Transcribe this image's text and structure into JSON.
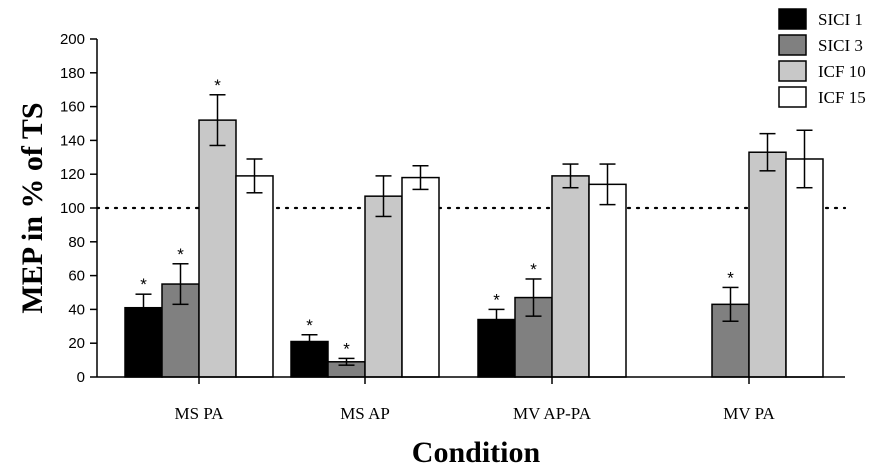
{
  "chart_data": {
    "type": "bar",
    "xlabel": "Condition",
    "ylabel": "MEP in % of TS",
    "ylim": [
      0,
      200
    ],
    "yticks": [
      0,
      20,
      40,
      60,
      80,
      100,
      120,
      140,
      160,
      180,
      200
    ],
    "reference_line": 100,
    "categories": [
      "MS PA",
      "MS AP",
      "MV AP-PA",
      "MV PA"
    ],
    "legend_position": "top-right",
    "series": [
      {
        "name": "SICI 1",
        "color": "#000000",
        "values": [
          41,
          21,
          34,
          null
        ],
        "errors": [
          8,
          4,
          6,
          null
        ],
        "significant": [
          true,
          true,
          true,
          false
        ]
      },
      {
        "name": "SICI 3",
        "color": "#808080",
        "values": [
          55,
          9,
          47,
          43
        ],
        "errors": [
          12,
          2,
          11,
          10
        ],
        "significant": [
          true,
          true,
          true,
          true
        ]
      },
      {
        "name": "ICF 10",
        "color": "#c8c8c8",
        "values": [
          152,
          107,
          119,
          133
        ],
        "errors": [
          15,
          12,
          7,
          11
        ],
        "significant": [
          true,
          false,
          false,
          false
        ]
      },
      {
        "name": "ICF 15",
        "color": "#ffffff",
        "values": [
          119,
          118,
          114,
          129
        ],
        "errors": [
          10,
          7,
          12,
          17
        ],
        "significant": [
          false,
          false,
          false,
          false
        ]
      }
    ],
    "significance_marker": "*"
  }
}
